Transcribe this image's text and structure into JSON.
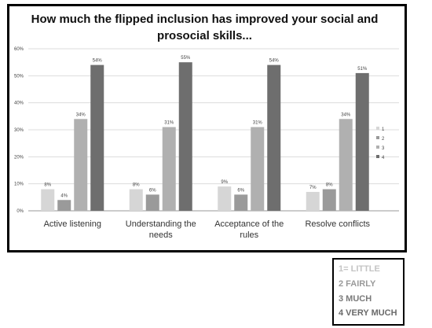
{
  "chart_data": {
    "type": "bar",
    "title_lines": [
      "How much the flipped inclusion has improved your social and",
      "prosocial skills..."
    ],
    "categories": [
      "Active listening",
      "Understanding the needs",
      "Acceptance of the rules",
      "Resolve conflicts"
    ],
    "series": [
      {
        "name": "1",
        "color": "#d6d6d6",
        "values": [
          8,
          8,
          9,
          7
        ]
      },
      {
        "name": "2",
        "color": "#9a9a9a",
        "values": [
          4,
          6,
          6,
          8
        ]
      },
      {
        "name": "3",
        "color": "#b0b0b0",
        "values": [
          34,
          31,
          31,
          34
        ]
      },
      {
        "name": "4",
        "color": "#6e6e6e",
        "values": [
          54,
          55,
          54,
          51
        ]
      }
    ],
    "ylim": [
      0,
      60
    ],
    "yticks": [
      0,
      10,
      20,
      30,
      40,
      50,
      60
    ],
    "value_suffix": "%",
    "legend_position": "right",
    "grid": true
  },
  "legend_box": {
    "items": [
      {
        "label": "1= LITTLE",
        "color": "#c4c4c4"
      },
      {
        "label": "2 FAIRLY",
        "color": "#9a9a9a"
      },
      {
        "label": "3 MUCH",
        "color": "#7a7a7a"
      },
      {
        "label": "4 VERY MUCH",
        "color": "#6a6a6a"
      }
    ]
  }
}
